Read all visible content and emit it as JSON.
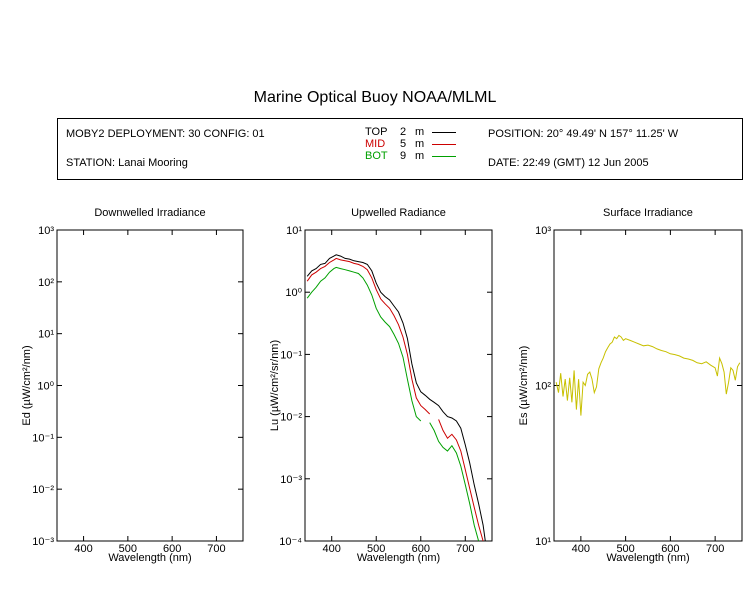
{
  "title": "Marine Optical Buoy NOAA/MLML",
  "info": {
    "deployment": "MOBY2 DEPLOYMENT: 30 CONFIG: 01",
    "station": "STATION: Lanai Mooring",
    "position": "POSITION: 20° 49.49' N   157° 11.25' W",
    "date": "DATE: 22:49 (GMT) 12 Jun 2005"
  },
  "legend": [
    {
      "name": "TOP",
      "depth": "2",
      "unit": "m",
      "color": "#000000"
    },
    {
      "name": "MID",
      "depth": "5",
      "unit": "m",
      "color": "#cc0000"
    },
    {
      "name": "BOT",
      "depth": "9",
      "unit": "m",
      "color": "#00a000"
    }
  ],
  "chart_data": [
    {
      "type": "line",
      "title": "Downwelled Irradiance",
      "xlabel": "Wavelength (nm)",
      "ylabel": "Ed  (µW/cm²/nm)",
      "xlim": [
        340,
        760
      ],
      "ylim": [
        0.001,
        1000
      ],
      "yscale": "log",
      "xticks": [
        "400",
        "500",
        "600",
        "700"
      ],
      "yticks": [
        "10⁻³",
        "10⁻²",
        "10⁻¹",
        "10⁰",
        "10¹",
        "10²",
        "10³"
      ],
      "series": []
    },
    {
      "type": "line",
      "title": "Upwelled Radiance",
      "xlabel": "Wavelength (nm)",
      "ylabel": "Lu  (µW/cm²/sr/nm)",
      "xlim": [
        340,
        760
      ],
      "ylim": [
        0.0001,
        10
      ],
      "yscale": "log",
      "xticks": [
        "400",
        "500",
        "600",
        "700"
      ],
      "yticks": [
        "10⁻⁴",
        "10⁻³",
        "10⁻²",
        "10⁻¹",
        "10⁰",
        "10¹"
      ],
      "series": [
        {
          "name": "TOP",
          "color": "#000000",
          "x": [
            345,
            355,
            365,
            375,
            385,
            395,
            405,
            410,
            420,
            430,
            440,
            450,
            460,
            470,
            480,
            490,
            500,
            510,
            520,
            530,
            540,
            550,
            560,
            570,
            580,
            590,
            600,
            610,
            620,
            630,
            640,
            650,
            660,
            670,
            680,
            690,
            700,
            710,
            720,
            730,
            740,
            745
          ],
          "y": [
            1.8,
            2.2,
            2.4,
            2.8,
            2.9,
            3.5,
            3.8,
            4.0,
            3.8,
            3.5,
            3.4,
            3.2,
            3.1,
            3.0,
            2.8,
            2.2,
            1.4,
            1.0,
            0.85,
            0.75,
            0.6,
            0.48,
            0.32,
            0.18,
            0.07,
            0.035,
            0.025,
            0.022,
            0.019,
            0.017,
            0.015,
            0.012,
            0.01,
            0.0095,
            0.0085,
            0.0065,
            0.0035,
            0.0018,
            0.0008,
            0.0004,
            0.00018,
            0.0001
          ]
        },
        {
          "name": "MID",
          "color": "#cc0000",
          "x": [
            345,
            355,
            365,
            375,
            385,
            395,
            405,
            410,
            420,
            430,
            440,
            450,
            460,
            470,
            480,
            490,
            500,
            510,
            520,
            530,
            540,
            550,
            560,
            570,
            580,
            590,
            600,
            610,
            620,
            630,
            640,
            650,
            660,
            670,
            680,
            690,
            700,
            710,
            720,
            730,
            740,
            745
          ],
          "y": [
            1.5,
            1.9,
            2.1,
            2.4,
            2.6,
            3.0,
            3.3,
            3.5,
            3.3,
            3.2,
            3.1,
            2.9,
            2.8,
            2.6,
            2.3,
            1.7,
            1.1,
            0.78,
            0.65,
            0.55,
            0.42,
            0.3,
            0.19,
            0.1,
            0.04,
            0.02,
            0.015,
            0.013,
            0.011,
            null,
            0.009,
            0.006,
            0.0045,
            0.0052,
            0.0042,
            0.0028,
            0.0014,
            0.0007,
            0.00035,
            0.00018,
            0.0001,
            null
          ]
        },
        {
          "name": "BOT",
          "color": "#00a000",
          "x": [
            345,
            355,
            365,
            375,
            385,
            395,
            405,
            410,
            420,
            430,
            440,
            450,
            460,
            470,
            480,
            490,
            500,
            510,
            520,
            530,
            540,
            550,
            560,
            570,
            580,
            590,
            600,
            610,
            620,
            630,
            640,
            650,
            660,
            670,
            680,
            690,
            700,
            710,
            720,
            730,
            740,
            745
          ],
          "y": [
            0.8,
            1.0,
            1.2,
            1.5,
            1.7,
            2.1,
            2.4,
            2.5,
            2.4,
            2.3,
            2.2,
            2.1,
            2.0,
            1.7,
            1.3,
            0.9,
            0.55,
            0.4,
            0.33,
            0.28,
            0.21,
            0.15,
            0.09,
            0.04,
            0.018,
            0.01,
            0.0085,
            null,
            0.008,
            0.006,
            0.004,
            0.0032,
            0.0028,
            0.0034,
            0.0026,
            0.0016,
            0.0008,
            0.0004,
            0.00018,
            0.0001,
            null,
            null
          ]
        }
      ]
    },
    {
      "type": "line",
      "title": "Surface Irradiance",
      "xlabel": "Wavelength (nm)",
      "ylabel": "Es  (µW/cm²/nm)",
      "xlim": [
        340,
        760
      ],
      "ylim": [
        10,
        1000
      ],
      "yscale": "log",
      "xticks": [
        "400",
        "500",
        "600",
        "700"
      ],
      "yticks": [
        "10¹",
        "10²",
        "10³"
      ],
      "series": [
        {
          "name": "Es",
          "color": "#c8c000",
          "x": [
            345,
            350,
            355,
            360,
            365,
            370,
            375,
            380,
            385,
            390,
            395,
            400,
            405,
            410,
            415,
            420,
            425,
            430,
            435,
            440,
            445,
            450,
            455,
            460,
            465,
            470,
            475,
            480,
            485,
            490,
            495,
            500,
            510,
            520,
            530,
            540,
            550,
            560,
            570,
            580,
            590,
            600,
            610,
            620,
            630,
            640,
            650,
            660,
            670,
            680,
            690,
            700,
            705,
            710,
            715,
            720,
            725,
            730,
            735,
            740,
            745,
            750,
            755
          ],
          "y": [
            105,
            90,
            120,
            85,
            110,
            80,
            112,
            78,
            125,
            70,
            110,
            64,
            105,
            100,
            118,
            122,
            110,
            90,
            98,
            128,
            140,
            150,
            165,
            175,
            185,
            190,
            205,
            200,
            210,
            205,
            195,
            200,
            195,
            190,
            185,
            180,
            182,
            178,
            172,
            168,
            165,
            160,
            158,
            155,
            150,
            148,
            145,
            140,
            138,
            142,
            135,
            130,
            115,
            150,
            138,
            122,
            88,
            105,
            130,
            125,
            108,
            132,
            140
          ]
        }
      ]
    }
  ]
}
